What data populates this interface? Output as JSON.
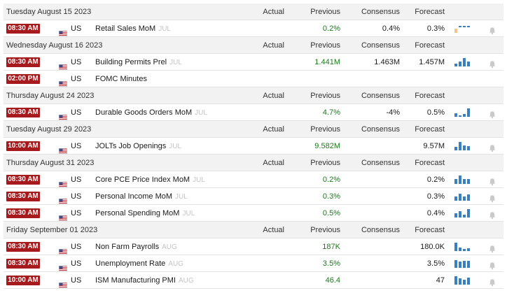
{
  "columns": {
    "actual": "Actual",
    "previous": "Previous",
    "consensus": "Consensus",
    "forecast": "Forecast"
  },
  "colors": {
    "time_badge": "#a6191d",
    "positive": "#1b7a1b",
    "chart_bar": "#3a7fc1",
    "chart_bar_muted": "#f2c48c"
  },
  "sections": [
    {
      "date": "Tuesday August 15 2023",
      "events": [
        {
          "time": "08:30 AM",
          "country": "US",
          "name": "Retail Sales MoM",
          "period": "JUL",
          "actual": "",
          "previous": "0.2%",
          "previous_color": "green",
          "consensus": "0.4%",
          "forecast": "0.3%",
          "chart": {
            "bars": [
              0.5,
              0.15,
              0.25,
              0.2
            ],
            "style": "muted"
          }
        }
      ]
    },
    {
      "date": "Wednesday August 16 2023",
      "events": [
        {
          "time": "08:30 AM",
          "country": "US",
          "name": "Building Permits Prel",
          "period": "JUL",
          "actual": "",
          "previous": "1.441M",
          "previous_color": "green",
          "consensus": "1.463M",
          "forecast": "1.457M",
          "chart": {
            "bars": [
              0.35,
              0.6,
              1.0,
              0.55
            ],
            "style": "normal"
          }
        },
        {
          "time": "02:00 PM",
          "country": "US",
          "name": "FOMC Minutes",
          "period": "",
          "actual": "",
          "previous": "",
          "previous_color": "black",
          "consensus": "",
          "forecast": "",
          "chart": null
        }
      ]
    },
    {
      "date": "Thursday August 24 2023",
      "events": [
        {
          "time": "08:30 AM",
          "country": "US",
          "name": "Durable Goods Orders MoM",
          "period": "JUL",
          "actual": "",
          "previous": "4.7%",
          "previous_color": "green",
          "consensus": "-4%",
          "forecast": "0.5%",
          "chart": {
            "bars": [
              0.4,
              0.2,
              0.35,
              1.0
            ],
            "style": "normal"
          }
        }
      ]
    },
    {
      "date": "Tuesday August 29 2023",
      "events": [
        {
          "time": "10:00 AM",
          "country": "US",
          "name": "JOLTs Job Openings",
          "period": "JUL",
          "actual": "",
          "previous": "9.582M",
          "previous_color": "green",
          "consensus": "",
          "forecast": "9.57M",
          "chart": {
            "bars": [
              0.45,
              1.0,
              0.6,
              0.5
            ],
            "style": "normal"
          }
        }
      ]
    },
    {
      "date": "Thursday August 31 2023",
      "events": [
        {
          "time": "08:30 AM",
          "country": "US",
          "name": "Core PCE Price Index MoM",
          "period": "JUL",
          "actual": "",
          "previous": "0.2%",
          "previous_color": "green",
          "consensus": "",
          "forecast": "0.2%",
          "chart": {
            "bars": [
              0.55,
              1.0,
              0.6,
              0.55
            ],
            "style": "normal"
          }
        },
        {
          "time": "08:30 AM",
          "country": "US",
          "name": "Personal Income MoM",
          "period": "JUL",
          "actual": "",
          "previous": "0.3%",
          "previous_color": "green",
          "consensus": "",
          "forecast": "0.3%",
          "chart": {
            "bars": [
              0.5,
              0.8,
              0.5,
              0.75
            ],
            "style": "normal"
          }
        },
        {
          "time": "08:30 AM",
          "country": "US",
          "name": "Personal Spending MoM",
          "period": "JUL",
          "actual": "",
          "previous": "0.5%",
          "previous_color": "green",
          "consensus": "",
          "forecast": "0.4%",
          "chart": {
            "bars": [
              0.5,
              0.75,
              0.35,
              1.0
            ],
            "style": "normal"
          }
        }
      ]
    },
    {
      "date": "Friday September 01 2023",
      "events": [
        {
          "time": "08:30 AM",
          "country": "US",
          "name": "Non Farm Payrolls",
          "period": "AUG",
          "actual": "",
          "previous": "187K",
          "previous_color": "green",
          "consensus": "",
          "forecast": "180.0K",
          "chart": {
            "bars": [
              1.0,
              0.4,
              0.25,
              0.35
            ],
            "style": "normal"
          }
        },
        {
          "time": "08:30 AM",
          "country": "US",
          "name": "Unemployment Rate",
          "period": "AUG",
          "actual": "",
          "previous": "3.5%",
          "previous_color": "green",
          "consensus": "",
          "forecast": "3.5%",
          "chart": {
            "bars": [
              0.9,
              0.75,
              0.85,
              0.8
            ],
            "style": "normal"
          }
        },
        {
          "time": "10:00 AM",
          "country": "US",
          "name": "ISM Manufacturing PMI",
          "period": "AUG",
          "actual": "",
          "previous": "46.4",
          "previous_color": "green",
          "consensus": "",
          "forecast": "47",
          "chart": {
            "bars": [
              1.0,
              0.75,
              0.6,
              0.8
            ],
            "style": "normal"
          }
        }
      ]
    }
  ]
}
